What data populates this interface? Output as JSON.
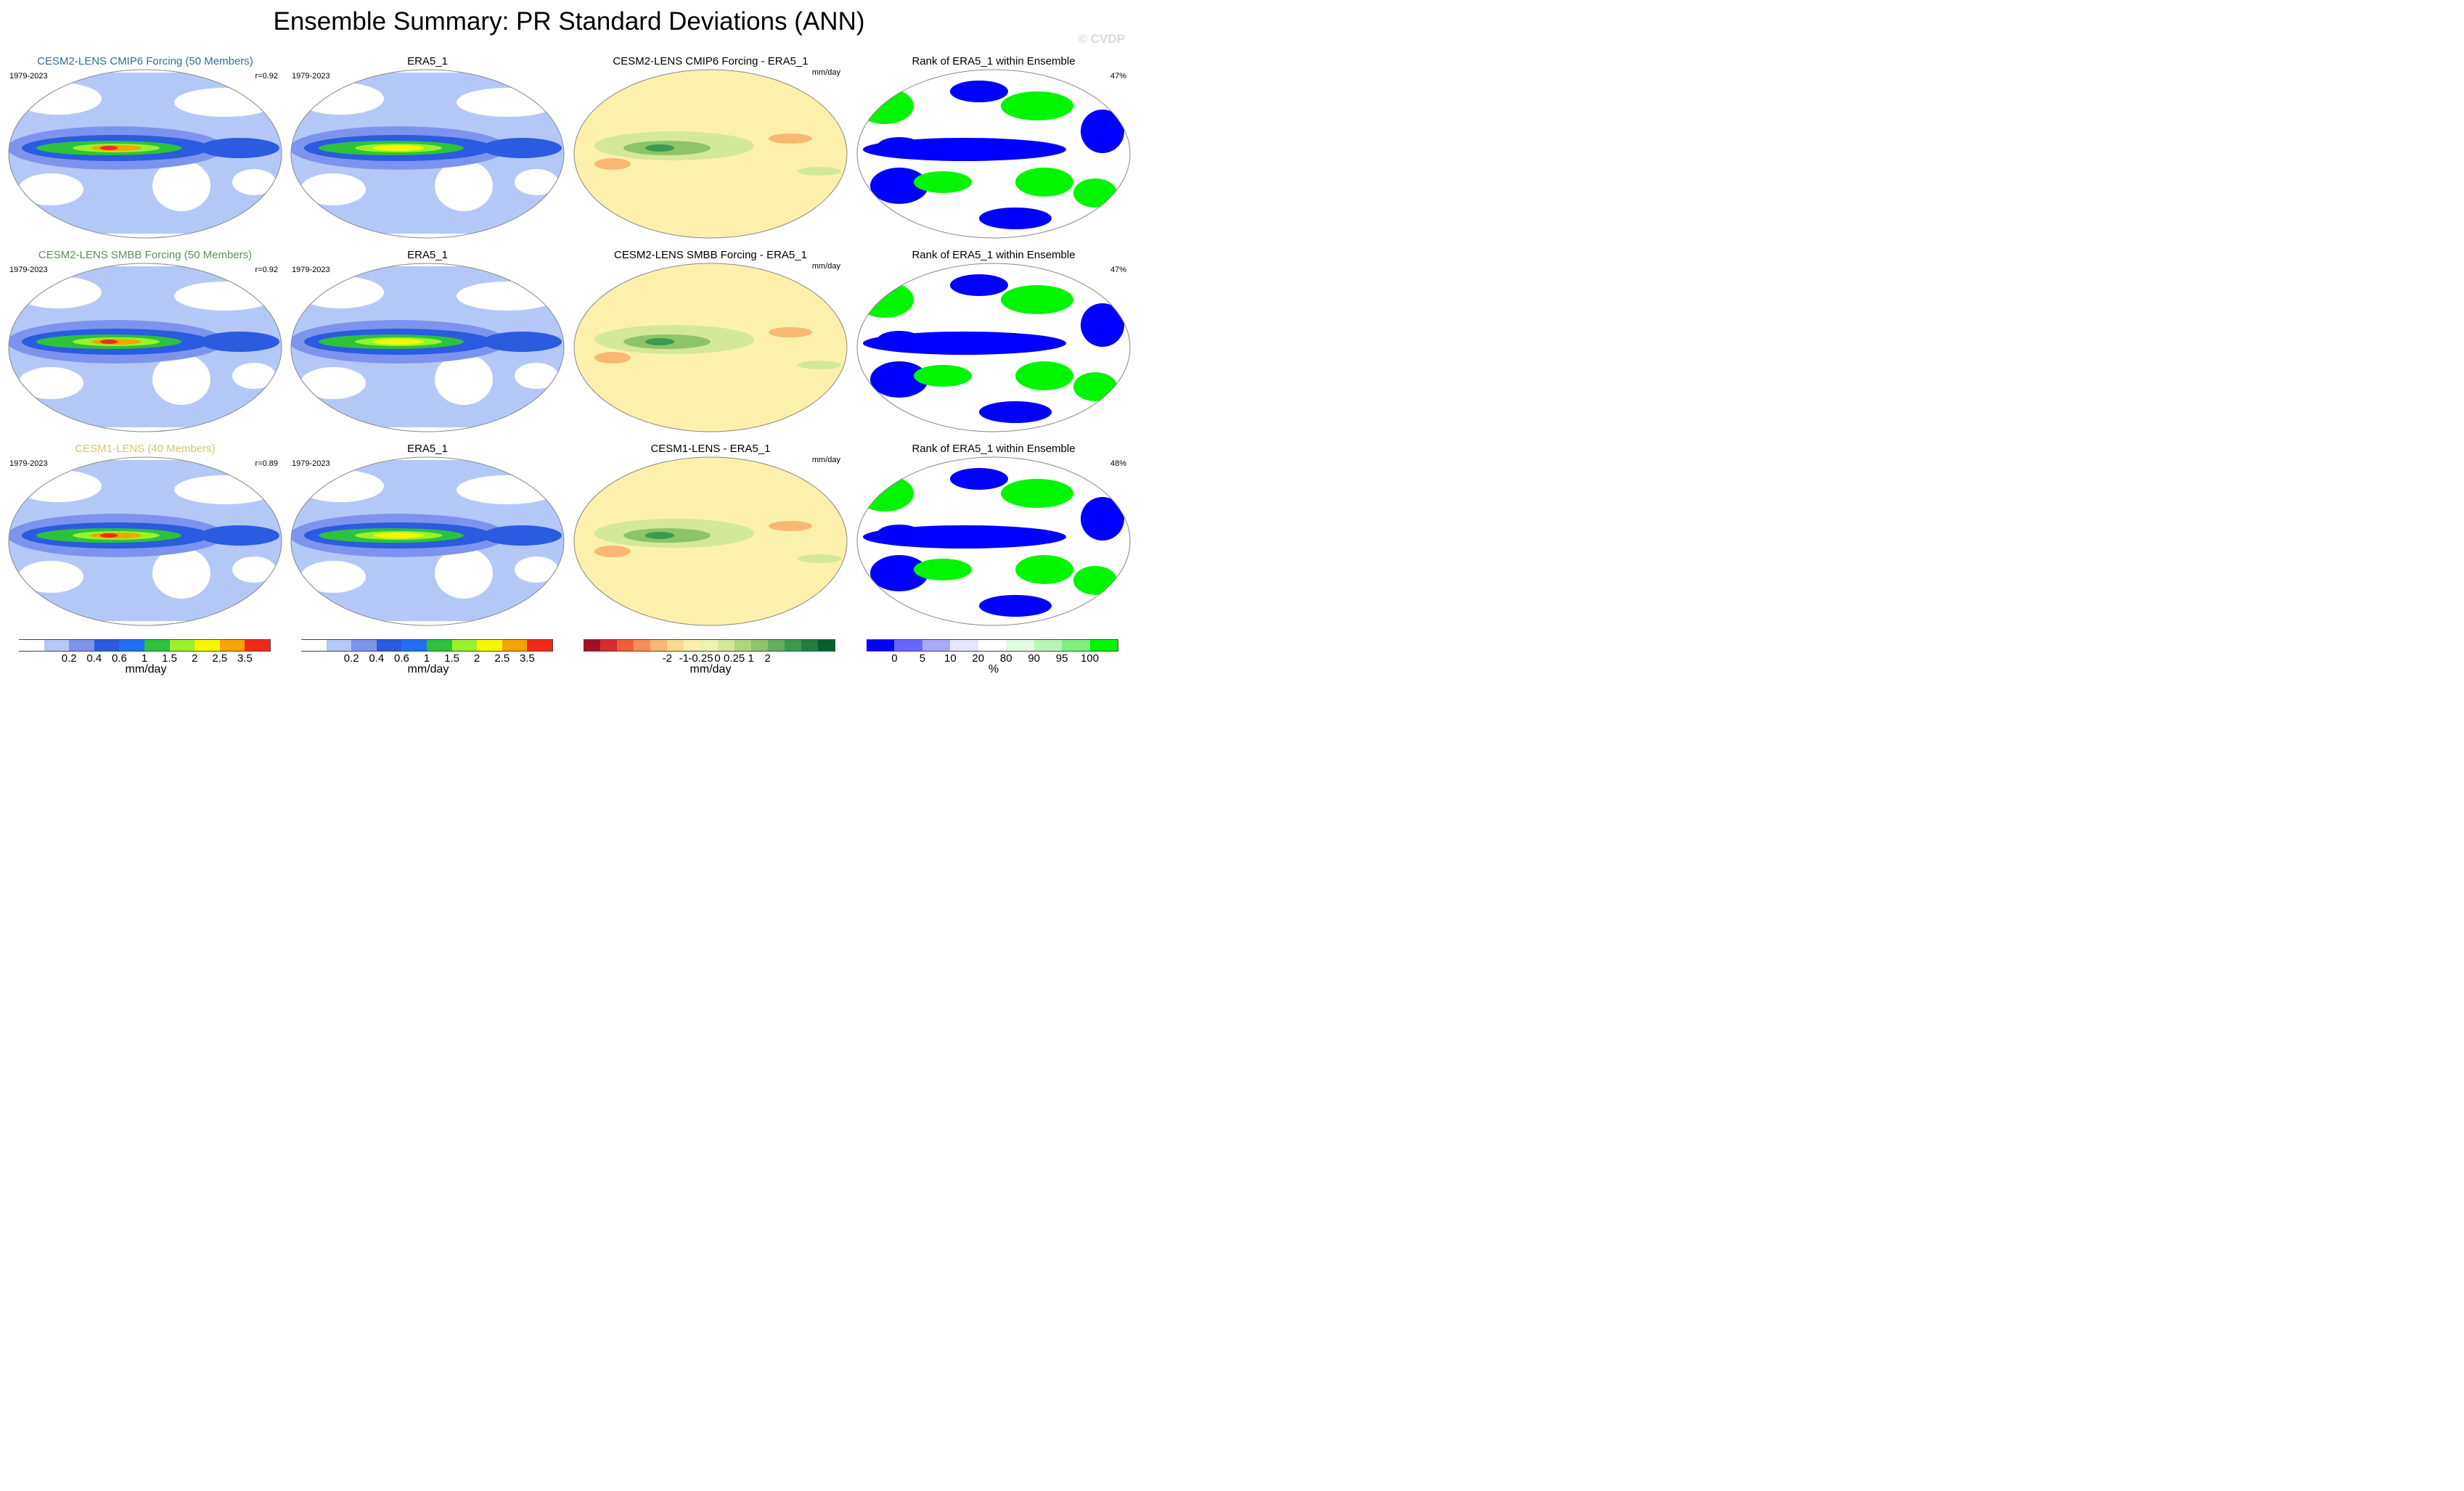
{
  "title": "Ensemble Summary: PR Standard Deviations (ANN)",
  "watermark": "© CVDP",
  "rows": [
    {
      "model": "CESM2-LENS CMIP6 Forcing (50 Members)",
      "model_color": "#2f6e94",
      "years": "1979-2023",
      "pattern_corr": "r=0.92",
      "obs_title": "ERA5_1",
      "obs_years": "1979-2023",
      "diff_title": "CESM2-LENS CMIP6 Forcing - ERA5_1",
      "diff_units": "mm/day",
      "rank_title": "Rank of ERA5_1 within Ensemble",
      "rank_pct": "47%"
    },
    {
      "model": "CESM2-LENS SMBB Forcing (50 Members)",
      "model_color": "#5f8f5c",
      "years": "1979-2023",
      "pattern_corr": "r=0.92",
      "obs_title": "ERA5_1",
      "obs_years": "1979-2023",
      "diff_title": "CESM2-LENS SMBB Forcing - ERA5_1",
      "diff_units": "mm/day",
      "rank_title": "Rank of ERA5_1 within Ensemble",
      "rank_pct": "47%"
    },
    {
      "model": "CESM1-LENS (40 Members)",
      "model_color": "#d4c66a",
      "years": "1979-2023",
      "pattern_corr": "r=0.89",
      "obs_title": "ERA5_1",
      "obs_years": "1979-2023",
      "diff_title": "CESM1-LENS - ERA5_1",
      "diff_units": "mm/day",
      "rank_title": "Rank of ERA5_1 within Ensemble",
      "rank_pct": "48%"
    }
  ],
  "colorbars": {
    "stddev": {
      "colors": [
        "#ffffff",
        "#b4c8f8",
        "#7d94ee",
        "#2a5be0",
        "#1f6ff5",
        "#2cc23b",
        "#98f22b",
        "#f6f600",
        "#f8a300",
        "#f2281a"
      ],
      "ticks": [
        "0.2",
        "0.4",
        "0.6",
        "1",
        "1.5",
        "2",
        "2.5",
        "3.5"
      ],
      "units": "mm/day"
    },
    "diff": {
      "colors": [
        "#a50f26",
        "#d52d2d",
        "#ec5f3a",
        "#f68e58",
        "#f9b774",
        "#fbd98f",
        "#fbf1ad",
        "#ecf3ae",
        "#d3e898",
        "#b0d67d",
        "#8cc46a",
        "#63ad5d",
        "#3a9a50",
        "#1d7f40",
        "#0a5e2d"
      ],
      "ticks": [
        "-2",
        "-1",
        "-0.25",
        "0",
        "0.25",
        "1",
        "2"
      ],
      "units": "mm/day"
    },
    "rank": {
      "colors": [
        "#0000ff",
        "#6767ff",
        "#a9a9f6",
        "#e4e4fb",
        "#ffffff",
        "#e3fae3",
        "#b6f5b6",
        "#7ef07e",
        "#00f500"
      ],
      "ticks": [
        "0",
        "5",
        "10",
        "20",
        "80",
        "90",
        "95",
        "100"
      ],
      "units": "%"
    }
  }
}
